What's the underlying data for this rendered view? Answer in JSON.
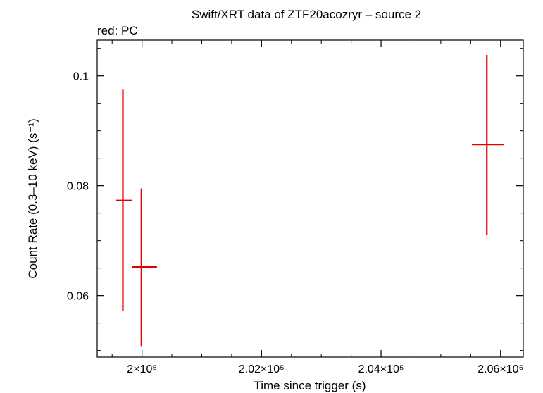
{
  "chart_data": {
    "type": "scatter",
    "title": "Swift/XRT data of ZTF20acozryr – source 2",
    "subtitle": "red: PC",
    "xlabel": "Time since trigger (s)",
    "ylabel": "Count Rate (0.3–10 keV) (s⁻¹)",
    "xlim": [
      199250,
      206380
    ],
    "ylim": [
      0.0488,
      0.1065
    ],
    "x_ticks": [
      {
        "value": 200000,
        "label": "2×10⁵"
      },
      {
        "value": 202000,
        "label": "2.02×10⁵"
      },
      {
        "value": 204000,
        "label": "2.04×10⁵"
      },
      {
        "value": 206000,
        "label": "2.06×10⁵"
      }
    ],
    "y_ticks": [
      {
        "value": 0.06,
        "label": "0.06"
      },
      {
        "value": 0.08,
        "label": "0.08"
      },
      {
        "value": 0.1,
        "label": "0.1"
      }
    ],
    "grid": false,
    "series": [
      {
        "name": "PC",
        "color": "#e00000",
        "points": [
          {
            "x": 199680,
            "xlo": 199560,
            "xhi": 199830,
            "y": 0.0773,
            "ylo": 0.0572,
            "yhi": 0.0975
          },
          {
            "x": 199990,
            "xlo": 199830,
            "xhi": 200250,
            "y": 0.0652,
            "ylo": 0.0508,
            "yhi": 0.0795
          },
          {
            "x": 205770,
            "xlo": 205520,
            "xhi": 206050,
            "y": 0.0875,
            "ylo": 0.071,
            "yhi": 0.1038
          }
        ]
      }
    ]
  }
}
